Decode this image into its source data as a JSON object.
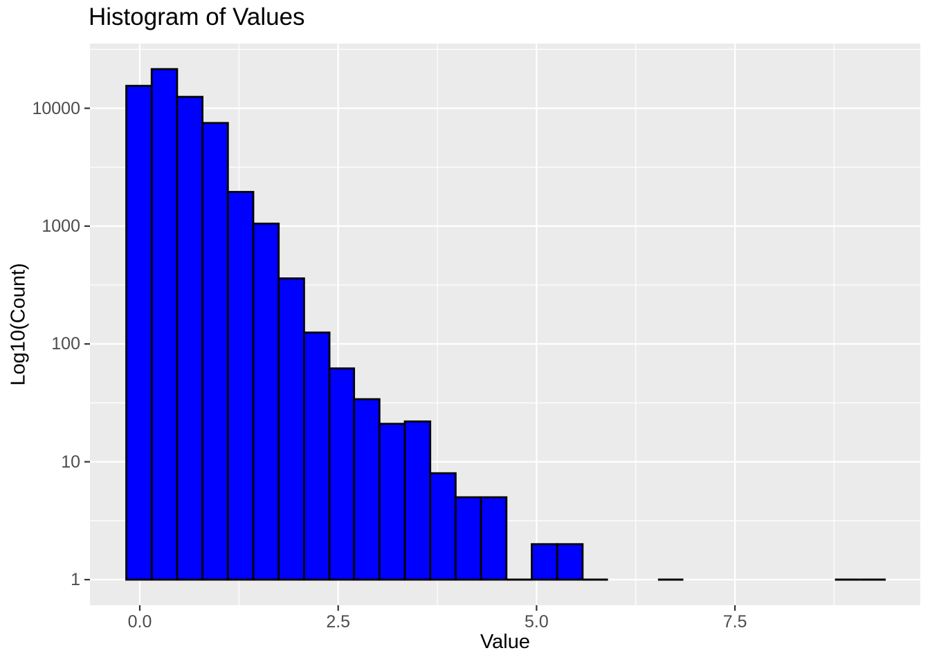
{
  "chart_data": {
    "type": "bar",
    "subtype": "histogram",
    "title": "Histogram of Values",
    "xlabel": "Value",
    "ylabel": "Log10(Count)",
    "y_scale": "log10",
    "legend": "none",
    "grid": "major+minor",
    "x_ticks": [
      0.0,
      2.5,
      5.0,
      7.5
    ],
    "x_tick_labels": [
      "0.0",
      "2.5",
      "5.0",
      "7.5"
    ],
    "x_minor_ticks": [
      1.25,
      3.75,
      6.25,
      8.75
    ],
    "y_ticks": [
      1,
      10,
      100,
      1000,
      10000
    ],
    "y_tick_labels": [
      "1",
      "10",
      "100",
      "1000",
      "10000"
    ],
    "y_minor_ticks_log10": [
      0.5,
      1.5,
      2.5,
      3.5,
      4.5
    ],
    "xlim": [
      -0.628,
      9.836
    ],
    "ylim_log10": [
      -0.217,
      4.549
    ],
    "bins": [
      {
        "start": -0.17,
        "end": 0.15,
        "count": 15500
      },
      {
        "start": 0.15,
        "end": 0.47,
        "count": 21500
      },
      {
        "start": 0.47,
        "end": 0.79,
        "count": 12500
      },
      {
        "start": 0.79,
        "end": 1.11,
        "count": 7500
      },
      {
        "start": 1.11,
        "end": 1.43,
        "count": 1950
      },
      {
        "start": 1.43,
        "end": 1.75,
        "count": 1050
      },
      {
        "start": 1.75,
        "end": 2.07,
        "count": 360
      },
      {
        "start": 2.07,
        "end": 2.39,
        "count": 125
      },
      {
        "start": 2.39,
        "end": 2.7,
        "count": 62
      },
      {
        "start": 2.7,
        "end": 3.02,
        "count": 34
      },
      {
        "start": 3.02,
        "end": 3.34,
        "count": 21
      },
      {
        "start": 3.34,
        "end": 3.66,
        "count": 22
      },
      {
        "start": 3.66,
        "end": 3.98,
        "count": 8
      },
      {
        "start": 3.98,
        "end": 4.3,
        "count": 5
      },
      {
        "start": 4.3,
        "end": 4.62,
        "count": 5
      },
      {
        "start": 4.62,
        "end": 4.94,
        "count": 1
      },
      {
        "start": 4.94,
        "end": 5.26,
        "count": 2
      },
      {
        "start": 5.26,
        "end": 5.58,
        "count": 2
      },
      {
        "start": 5.58,
        "end": 5.9,
        "count": 1
      },
      {
        "start": 6.53,
        "end": 6.85,
        "count": 1
      },
      {
        "start": 8.76,
        "end": 9.08,
        "count": 1
      },
      {
        "start": 9.08,
        "end": 9.4,
        "count": 1
      }
    ],
    "colors": {
      "bar_fill": "#0000FF",
      "bar_stroke": "#000000",
      "panel_background": "#EBEBEB",
      "grid_line": "#FFFFFF",
      "tick_mark": "#333333",
      "tick_label": "#4D4D4D",
      "title": "#000000",
      "axis_title": "#000000",
      "background": "#FFFFFF"
    }
  }
}
